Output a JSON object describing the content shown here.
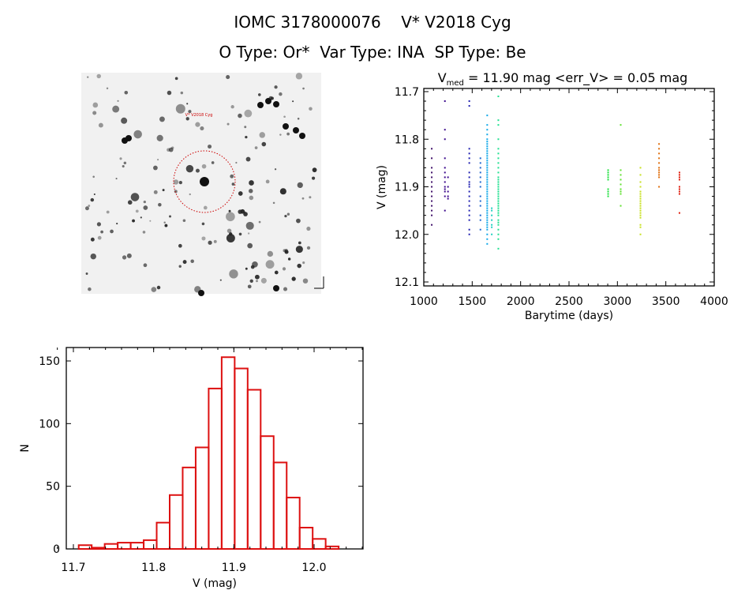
{
  "header": {
    "title": "IOMC 3178000076    V* V2018 Cyg",
    "subtitle": "O Type: Or*  Var Type: INA  SP Type: Be"
  },
  "image_panel": {
    "target_label": "V* V2018 Cyg"
  },
  "chart_data": [
    {
      "type": "scatter",
      "title_main": "V",
      "title_sub": "med",
      "title_rest": " = 11.90 mag <err_V> = 0.05 mag",
      "xlabel": "Barytime (days)",
      "ylabel": "V (mag)",
      "xlim": [
        1000,
        4000
      ],
      "ylim": [
        12.1,
        11.7
      ],
      "xticks": [
        "1000",
        "1500",
        "2000",
        "2500",
        "3000",
        "3500",
        "4000"
      ],
      "yticks": [
        "11.7",
        "11.8",
        "11.9",
        "12.0",
        "12.1"
      ],
      "groups": [
        {
          "t": 1082,
          "color": "#40106a",
          "v": [
            11.82,
            11.84,
            11.86,
            11.87,
            11.88,
            11.89,
            11.9,
            11.91,
            11.92,
            11.93,
            11.94,
            11.95,
            11.96,
            11.98
          ]
        },
        {
          "t": 1218,
          "color": "#3c0a8c",
          "v": [
            11.72,
            11.78,
            11.8,
            11.84,
            11.86,
            11.87,
            11.88,
            11.89,
            11.9,
            11.905,
            11.91,
            11.92,
            11.95
          ]
        },
        {
          "t": 1250,
          "color": "#3c0a8c",
          "v": [
            11.88,
            11.9,
            11.91,
            11.92,
            11.925
          ]
        },
        {
          "t": 1470,
          "color": "#2020b0",
          "v": [
            11.72,
            11.73,
            11.82,
            11.83,
            11.84,
            11.85,
            11.87,
            11.88,
            11.89,
            11.895,
            11.9,
            11.91,
            11.92,
            11.93,
            11.94,
            11.95,
            11.96,
            11.97,
            11.99,
            12.0
          ]
        },
        {
          "t": 1585,
          "color": "#2068d0",
          "v": [
            11.84,
            11.85,
            11.86,
            11.87,
            11.88,
            11.89,
            11.9,
            11.92,
            11.93,
            11.94,
            11.96,
            11.97,
            11.99
          ]
        },
        {
          "t": 1655,
          "color": "#10a8e8",
          "v": [
            11.75,
            11.77,
            11.78,
            11.79,
            11.8,
            11.805,
            11.81,
            11.815,
            11.82,
            11.825,
            11.83,
            11.835,
            11.84,
            11.845,
            11.85,
            11.855,
            11.86,
            11.865,
            11.87,
            11.875,
            11.88,
            11.885,
            11.89,
            11.895,
            11.9,
            11.905,
            11.91,
            11.915,
            11.92,
            11.925,
            11.93,
            11.935,
            11.94,
            11.945,
            11.95,
            11.955,
            11.96,
            11.965,
            11.97,
            11.975,
            11.98,
            11.985,
            11.99,
            12.0,
            12.01,
            12.02
          ]
        },
        {
          "t": 1702,
          "color": "#20d0c0",
          "v": [
            11.945,
            11.95,
            11.96,
            11.97,
            11.98,
            11.985,
            12.0
          ]
        },
        {
          "t": 1770,
          "color": "#20e090",
          "v": [
            11.71,
            11.76,
            11.77,
            11.8,
            11.82,
            11.83,
            11.84,
            11.85,
            11.86,
            11.87,
            11.88,
            11.885,
            11.89,
            11.895,
            11.9,
            11.905,
            11.91,
            11.915,
            11.92,
            11.925,
            11.93,
            11.935,
            11.94,
            11.945,
            11.95,
            11.955,
            11.96,
            11.97,
            11.975,
            11.98,
            11.99,
            12.0,
            12.01,
            12.03
          ]
        },
        {
          "t": 2904,
          "color": "#20e040",
          "v": [
            11.865,
            11.87,
            11.875,
            11.88,
            11.885,
            11.905,
            11.91,
            11.915,
            11.92
          ]
        },
        {
          "t": 3034,
          "color": "#60e030",
          "v": [
            11.77,
            11.865,
            11.875,
            11.885,
            11.895,
            11.905,
            11.91,
            11.915,
            11.94
          ]
        },
        {
          "t": 3238,
          "color": "#c8e020",
          "v": [
            11.86,
            11.875,
            11.89,
            11.9,
            11.91,
            11.915,
            11.92,
            11.925,
            11.93,
            11.935,
            11.94,
            11.945,
            11.95,
            11.955,
            11.96,
            11.965,
            11.98,
            11.985,
            12.0
          ]
        },
        {
          "t": 3430,
          "color": "#e07010",
          "v": [
            11.81,
            11.82,
            11.83,
            11.84,
            11.85,
            11.86,
            11.865,
            11.87,
            11.875,
            11.88,
            11.9
          ]
        },
        {
          "t": 3641,
          "color": "#e02010",
          "v": [
            11.87,
            11.875,
            11.88,
            11.885,
            11.9,
            11.905,
            11.91,
            11.915,
            11.955
          ]
        }
      ]
    },
    {
      "type": "bar",
      "subtype": "histogram",
      "xlabel": "V (mag)",
      "ylabel": "N",
      "xlim": [
        11.68,
        12.065
      ],
      "ylim": [
        0,
        160
      ],
      "xticks": [
        "11.7",
        "11.8",
        "11.9",
        "12.0"
      ],
      "yticks": [
        "0",
        "50",
        "100",
        "150"
      ],
      "bin_start": 11.7066,
      "bin_width": 0.0162,
      "color": "#dd1111",
      "values": [
        3,
        1,
        4,
        5,
        5,
        7,
        21,
        43,
        65,
        81,
        128,
        153,
        144,
        127,
        90,
        69,
        41,
        17,
        8,
        2
      ]
    }
  ]
}
